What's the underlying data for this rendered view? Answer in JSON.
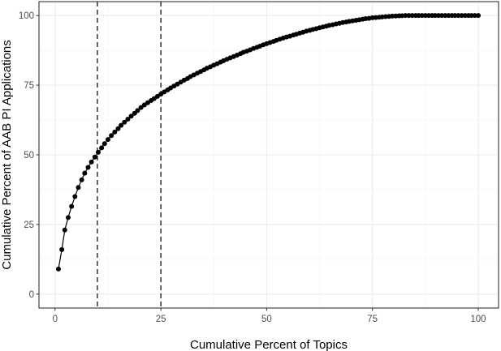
{
  "chart_data": {
    "type": "line",
    "title": "",
    "xlabel": "Cumulative Percent of Topics",
    "ylabel": "Cumulative Percent of AAB PI Applications",
    "xlim": [
      -3.8,
      104.8
    ],
    "ylim": [
      -5,
      105
    ],
    "xticks": [
      0,
      25,
      50,
      75,
      100
    ],
    "yticks": [
      0,
      25,
      50,
      75,
      100
    ],
    "grid": true,
    "legend": "none",
    "reference_lines": [
      {
        "axis": "x",
        "value": 10,
        "style": "dashed"
      },
      {
        "axis": "x",
        "value": 25,
        "style": "dashed"
      }
    ],
    "series": [
      {
        "x": [
          0.8,
          1.6,
          2.3,
          3.1,
          3.9,
          4.7,
          5.5,
          6.3,
          7.0,
          7.8,
          8.6,
          9.4,
          10.2,
          11.0,
          11.7,
          12.5,
          13.3,
          14.1,
          14.9,
          15.6,
          16.4,
          17.2,
          18.0,
          18.8,
          19.5,
          20.3,
          21.1,
          21.9,
          22.7,
          23.4,
          24.2,
          25.0,
          25.8,
          26.6,
          27.3,
          28.1,
          28.9,
          29.7,
          30.5,
          31.3,
          32.0,
          32.8,
          33.6,
          34.4,
          35.2,
          35.9,
          36.7,
          37.5,
          38.3,
          39.1,
          39.8,
          40.6,
          41.4,
          42.2,
          43.0,
          43.8,
          44.5,
          45.3,
          46.1,
          46.9,
          47.7,
          48.4,
          49.2,
          50.0,
          50.8,
          51.6,
          52.3,
          53.1,
          53.9,
          54.7,
          55.5,
          56.3,
          57.0,
          57.8,
          58.6,
          59.4,
          60.2,
          60.9,
          61.7,
          62.5,
          63.3,
          64.1,
          64.8,
          65.6,
          66.4,
          67.2,
          68.0,
          68.8,
          69.5,
          70.3,
          71.1,
          71.9,
          72.7,
          73.4,
          74.2,
          75.0,
          75.8,
          76.6,
          77.3,
          78.1,
          78.9,
          79.7,
          80.5,
          81.3,
          82.0,
          82.8,
          83.6,
          84.4,
          85.2,
          85.9,
          86.7,
          87.5,
          88.3,
          89.1,
          89.8,
          90.6,
          91.4,
          92.2,
          93.0,
          93.8,
          94.5,
          95.3,
          96.1,
          96.9,
          97.7,
          98.4,
          99.2,
          100.0
        ],
        "y": [
          9.0,
          16.0,
          23.0,
          27.5,
          31.5,
          35.0,
          38.3,
          41.0,
          43.4,
          45.5,
          47.4,
          49.2,
          50.9,
          52.5,
          54.0,
          55.5,
          56.9,
          58.2,
          59.4,
          60.6,
          61.7,
          62.8,
          63.9,
          64.9,
          65.9,
          67.0,
          67.9,
          68.7,
          69.5,
          70.2,
          71.0,
          71.8,
          72.6,
          73.3,
          74.0,
          74.7,
          75.4,
          76.1,
          76.8,
          77.4,
          78.1,
          78.7,
          79.3,
          79.9,
          80.5,
          81.1,
          81.6,
          82.2,
          82.7,
          83.3,
          83.8,
          84.3,
          84.8,
          85.3,
          85.8,
          86.3,
          86.8,
          87.2,
          87.7,
          88.2,
          88.6,
          89.0,
          89.5,
          89.9,
          90.3,
          90.7,
          91.1,
          91.5,
          91.9,
          92.3,
          92.6,
          93.0,
          93.3,
          93.7,
          94.0,
          94.4,
          94.7,
          95.0,
          95.3,
          95.6,
          95.9,
          96.2,
          96.5,
          96.7,
          97.0,
          97.2,
          97.5,
          97.7,
          97.9,
          98.1,
          98.3,
          98.5,
          98.7,
          98.9,
          99.0,
          99.2,
          99.3,
          99.4,
          99.5,
          99.6,
          99.7,
          99.8,
          99.85,
          99.9,
          99.95,
          100,
          100,
          100,
          100,
          100,
          100,
          100,
          100,
          100,
          100,
          100,
          100,
          100,
          100,
          100,
          100,
          100,
          100,
          100,
          100,
          100,
          100,
          100
        ]
      }
    ]
  }
}
